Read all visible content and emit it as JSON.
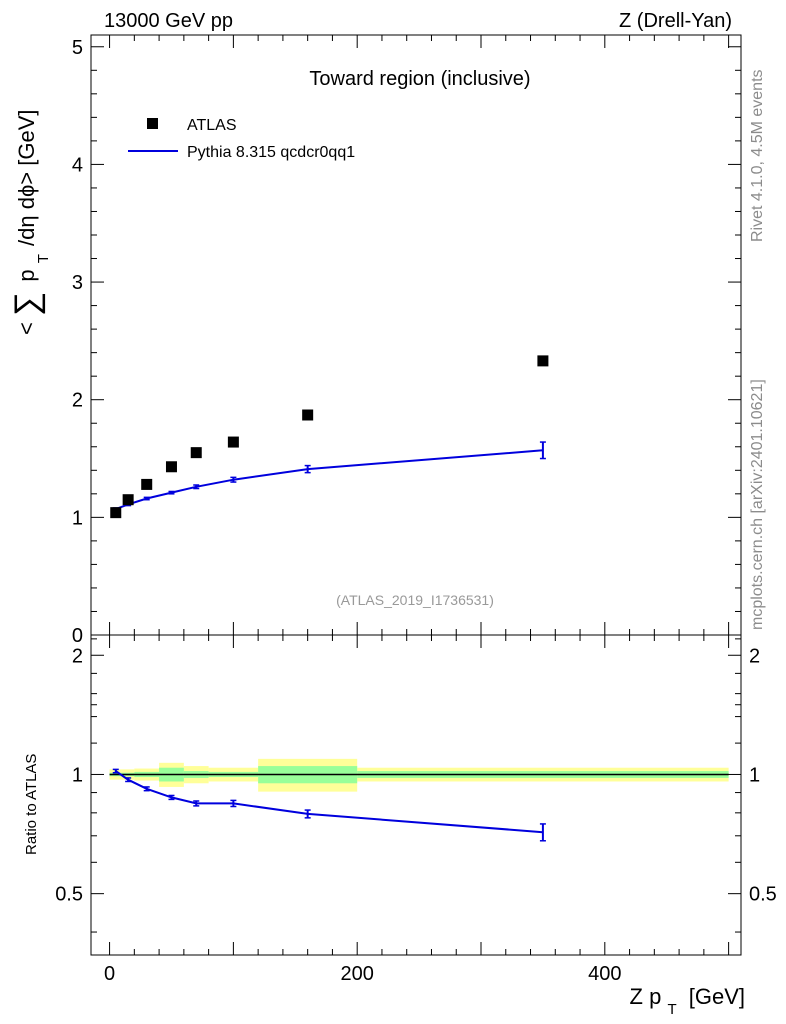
{
  "header": {
    "energy": "13000 GeV pp",
    "process": "Z (Drell-Yan)"
  },
  "side_labels": {
    "rivet": "Rivet 4.1.0,  4.5M events",
    "mcplots": "mcplots.cern.ch [arXiv:2401.10621]"
  },
  "analysis_id": "(ATLAS_2019_I1736531)",
  "chart_data": [
    {
      "type": "scatter",
      "title": "Toward region (inclusive)",
      "ylabel": "< ∑ p_T /dη dϕ> [GeV]",
      "ylabel_parts": {
        "open": "<",
        "sum": "∑",
        "p": "p",
        "sub": "T",
        "rest": "/dη dϕ> [GeV]"
      },
      "xlim": [
        -15,
        510
      ],
      "ylim": [
        0,
        5.1
      ],
      "y_ticks": [
        0,
        1,
        2,
        3,
        4,
        5
      ],
      "y_tick_labels": [
        "0",
        "1",
        "2",
        "3",
        "4",
        "5"
      ],
      "legend": {
        "position": "top-left",
        "data_label": "ATLAS",
        "mc_label": "Pythia 8.315 qcdcr0qq1"
      },
      "series": [
        {
          "name": "ATLAS",
          "style": "markers",
          "color": "#000000",
          "points": [
            {
              "x": 5,
              "y": 1.04
            },
            {
              "x": 15,
              "y": 1.15
            },
            {
              "x": 30,
              "y": 1.28
            },
            {
              "x": 50,
              "y": 1.43
            },
            {
              "x": 70,
              "y": 1.55
            },
            {
              "x": 100,
              "y": 1.64
            },
            {
              "x": 160,
              "y": 1.87
            },
            {
              "x": 350,
              "y": 2.33
            }
          ]
        },
        {
          "name": "Pythia 8.315 qcdcr0qq1",
          "style": "line",
          "color": "#0000dd",
          "points": [
            {
              "x": 5,
              "y": 1.07,
              "err": 0.01
            },
            {
              "x": 15,
              "y": 1.11,
              "err": 0.01
            },
            {
              "x": 30,
              "y": 1.16,
              "err": 0.01
            },
            {
              "x": 50,
              "y": 1.21,
              "err": 0.01
            },
            {
              "x": 70,
              "y": 1.26,
              "err": 0.015
            },
            {
              "x": 100,
              "y": 1.32,
              "err": 0.02
            },
            {
              "x": 160,
              "y": 1.41,
              "err": 0.03
            },
            {
              "x": 350,
              "y": 1.57,
              "err": 0.07
            }
          ]
        }
      ]
    },
    {
      "type": "line",
      "ylabel": "Ratio to ATLAS",
      "xlabel": "Z p_T [GeV]",
      "xlabel_parts": {
        "main": "Z p",
        "sub": "T",
        "unit": "[GeV]"
      },
      "xlim": [
        -15,
        510
      ],
      "ylim": [
        0.35,
        2.25
      ],
      "x_ticks": [
        0,
        200,
        400
      ],
      "x_tick_labels": [
        "0",
        "200",
        "400"
      ],
      "y_ticks": [
        0.5,
        1,
        2
      ],
      "y_tick_labels": [
        "0.5",
        "1",
        "2"
      ],
      "reference_line": 1,
      "bands": [
        {
          "x0": 0,
          "x1": 10,
          "inner": 0.01,
          "outer": 0.03
        },
        {
          "x0": 10,
          "x1": 20,
          "inner": 0.01,
          "outer": 0.03
        },
        {
          "x0": 20,
          "x1": 40,
          "inner": 0.015,
          "outer": 0.035
        },
        {
          "x0": 40,
          "x1": 60,
          "inner": 0.04,
          "outer": 0.07
        },
        {
          "x0": 60,
          "x1": 80,
          "inner": 0.02,
          "outer": 0.05
        },
        {
          "x0": 80,
          "x1": 120,
          "inner": 0.015,
          "outer": 0.04
        },
        {
          "x0": 120,
          "x1": 200,
          "inner": 0.05,
          "outer": 0.095
        },
        {
          "x0": 200,
          "x1": 500,
          "inner": 0.02,
          "outer": 0.04
        }
      ],
      "series": [
        {
          "name": "Pythia 8.315 qcdcr0qq1 / ATLAS",
          "color": "#0000dd",
          "points": [
            {
              "x": 5,
              "y": 1.02,
              "err": 0.01
            },
            {
              "x": 15,
              "y": 0.97,
              "err": 0.01
            },
            {
              "x": 30,
              "y": 0.92,
              "err": 0.01
            },
            {
              "x": 50,
              "y": 0.875,
              "err": 0.01
            },
            {
              "x": 70,
              "y": 0.845,
              "err": 0.012
            },
            {
              "x": 100,
              "y": 0.845,
              "err": 0.015
            },
            {
              "x": 160,
              "y": 0.795,
              "err": 0.018
            },
            {
              "x": 350,
              "y": 0.715,
              "err": 0.035
            }
          ]
        }
      ]
    }
  ],
  "colors": {
    "band_inner": "#99ff99",
    "band_outer": "#ffff99",
    "mc": "#0000dd",
    "side_text": "#8c8c8c"
  }
}
